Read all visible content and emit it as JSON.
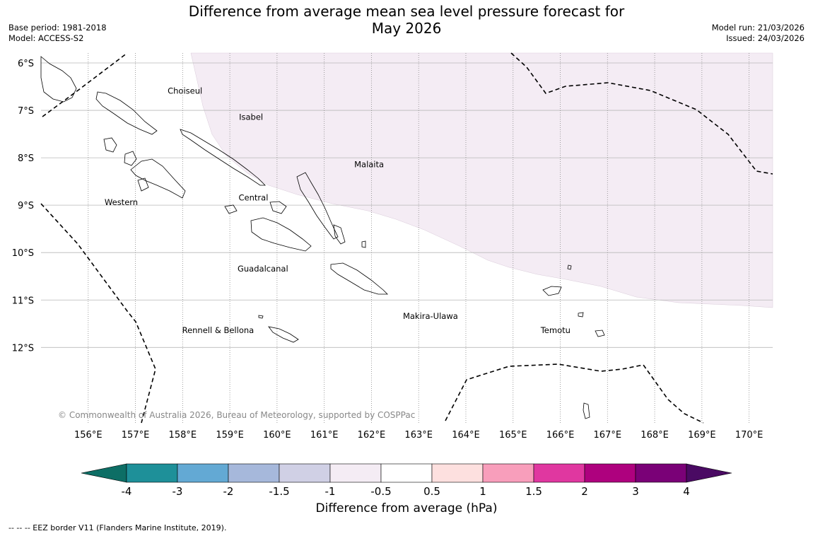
{
  "title_line1": "Difference from average mean sea level pressure forecast for",
  "title_line2": "May 2026",
  "meta_left": {
    "base_period": "Base period: 1981-2018",
    "model": "Model: ACCESS-S2"
  },
  "meta_right": {
    "model_run": "Model run: 21/03/2026",
    "issued": "Issued: 24/03/2026"
  },
  "map": {
    "lon_range": [
      155.0,
      170.5
    ],
    "lat_range": [
      -6.0,
      -13.8
    ],
    "lat_ticks": [
      {
        "value": -6,
        "label": "6°S"
      },
      {
        "value": -7,
        "label": "7°S"
      },
      {
        "value": -8,
        "label": "8°S"
      },
      {
        "value": -9,
        "label": "9°S"
      },
      {
        "value": -10,
        "label": "10°S"
      },
      {
        "value": -11,
        "label": "11°S"
      },
      {
        "value": -12,
        "label": "12°S"
      }
    ],
    "lon_ticks": [
      {
        "value": 156,
        "label": "156°E"
      },
      {
        "value": 157,
        "label": "157°E"
      },
      {
        "value": 158,
        "label": "158°E"
      },
      {
        "value": 159,
        "label": "159°E"
      },
      {
        "value": 160,
        "label": "160°E"
      },
      {
        "value": 161,
        "label": "161°E"
      },
      {
        "value": 162,
        "label": "162°E"
      },
      {
        "value": 163,
        "label": "163°E"
      },
      {
        "value": 164,
        "label": "164°E"
      },
      {
        "value": 165,
        "label": "165°E"
      },
      {
        "value": 166,
        "label": "166°E"
      },
      {
        "value": 167,
        "label": "167°E"
      },
      {
        "value": 168,
        "label": "168°E"
      },
      {
        "value": 169,
        "label": "169°E"
      },
      {
        "value": 170,
        "label": "170°E"
      }
    ],
    "provinces": [
      {
        "name": "Choiseul",
        "lon": 158.05,
        "lat": -6.65
      },
      {
        "name": "Isabel",
        "lon": 159.45,
        "lat": -7.2
      },
      {
        "name": "Malaita",
        "lon": 161.95,
        "lat": -8.2
      },
      {
        "name": "Western",
        "lon": 156.7,
        "lat": -9.0
      },
      {
        "name": "Central",
        "lon": 159.5,
        "lat": -8.9
      },
      {
        "name": "Guadalcanal",
        "lon": 159.7,
        "lat": -10.4
      },
      {
        "name": "Makira-Ulawa",
        "lon": 163.25,
        "lat": -11.4
      },
      {
        "name": "Rennell & Bellona",
        "lon": 158.75,
        "lat": -11.7
      },
      {
        "name": "Temotu",
        "lon": 165.9,
        "lat": -11.7
      }
    ],
    "shaded_category": "-1 to -0.5",
    "shaded_color": "#f4ecf4",
    "copyright": "© Commonwealth of Australia 2026, Bureau of Meteorology, supported by COSPPac"
  },
  "colorbar": {
    "label": "Difference from average (hPa)",
    "low_color": "#0d6e65",
    "high_color": "#4a0a63",
    "bins": [
      {
        "color": "#1e9099"
      },
      {
        "color": "#63a9d4"
      },
      {
        "color": "#a6b8db"
      },
      {
        "color": "#d0d0e5"
      },
      {
        "color": "#f4ecf4"
      },
      {
        "color": "#ffffff"
      },
      {
        "color": "#fde0df"
      },
      {
        "color": "#f89ebb"
      },
      {
        "color": "#e037a0"
      },
      {
        "color": "#ae017e"
      },
      {
        "color": "#7a0177"
      }
    ],
    "ticks": [
      "-4",
      "-3",
      "-2",
      "-1.5",
      "-1",
      "-0.5",
      "0.5",
      "1",
      "1.5",
      "2",
      "3",
      "4"
    ]
  },
  "footnote": "--  --  -- EEZ border V11 (Flanders Marine Institute, 2019)."
}
